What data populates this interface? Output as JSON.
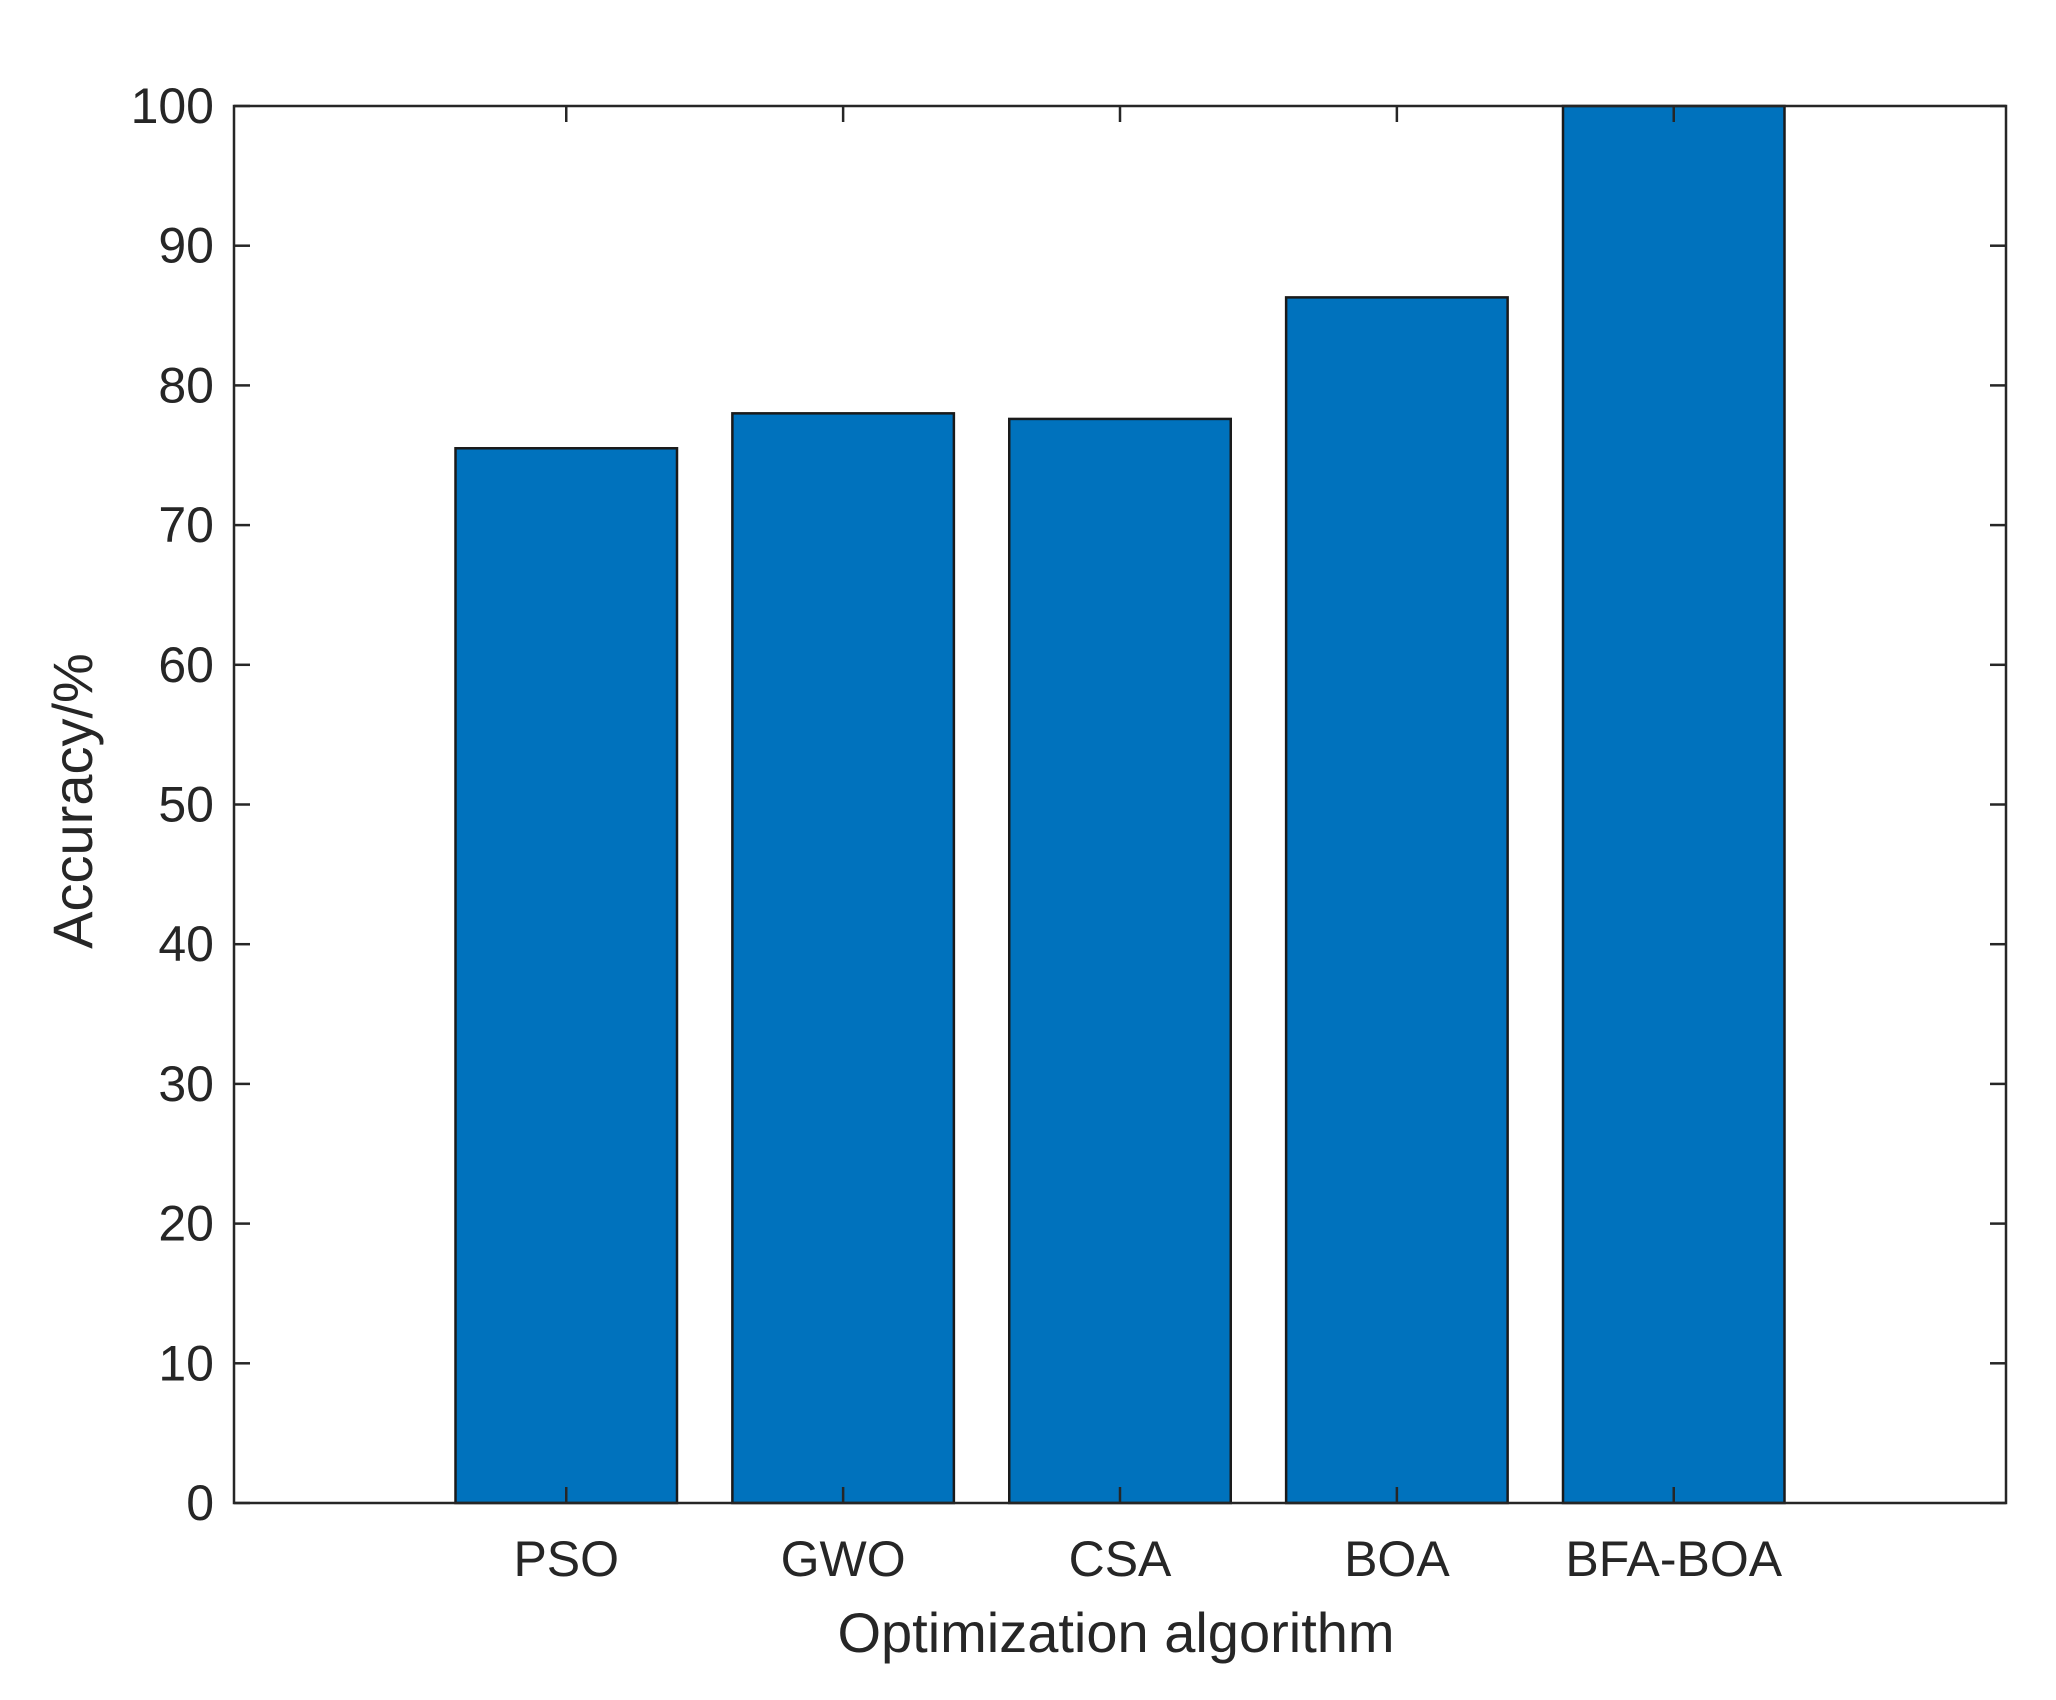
{
  "chart_data": {
    "type": "bar",
    "title": "",
    "xlabel": "Optimization algorithm",
    "ylabel": "Accuracy/%",
    "categories": [
      "PSO",
      "GWO",
      "CSA",
      "BOA",
      "BFA-BOA"
    ],
    "values": [
      75.5,
      78,
      77.6,
      86.3,
      100
    ],
    "ylim": [
      0,
      100
    ],
    "xlim": [
      -0.2,
      6.2
    ],
    "yticks": [
      0,
      10,
      20,
      30,
      40,
      50,
      60,
      70,
      80,
      90,
      100
    ],
    "ytick_labels": [
      "0",
      "10",
      "20",
      "30",
      "40",
      "50",
      "60",
      "70",
      "80",
      "90",
      "100"
    ],
    "grid": false,
    "box": true,
    "colors": {
      "bar": "#0072BD",
      "bar_edge": "#1a1a1a",
      "axis": "#262626"
    }
  }
}
